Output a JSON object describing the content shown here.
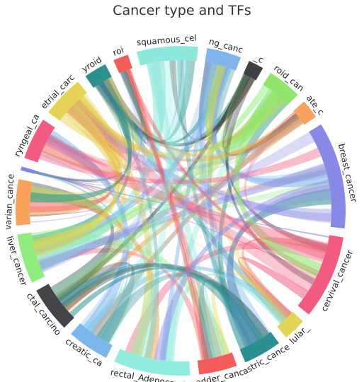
{
  "chart_data": {
    "type": "chord",
    "title": "Cancer type and TFs",
    "groups": [
      {
        "label": "squamous_cel",
        "color": "#8de8dc",
        "weight": 8.0
      },
      {
        "label": "ng_canc",
        "color": "#7fb5ec",
        "weight": 4.5
      },
      {
        "label": "_c",
        "color": "#3f4046",
        "weight": 2.0
      },
      {
        "label": "roid_can",
        "color": "#90e56e",
        "weight": 4.5
      },
      {
        "label": "ate_c",
        "color": "#f7a35d",
        "weight": 2.5
      },
      {
        "label": "breast_cancer",
        "color": "#8888e6",
        "weight": 14.0
      },
      {
        "label": "cervival_cancer",
        "color": "#f15b80",
        "weight": 11.0
      },
      {
        "label": "lular_",
        "color": "#e4d454",
        "weight": 3.0
      },
      {
        "label": "astric_cance",
        "color": "#2b908f",
        "weight": 5.0
      },
      {
        "label": "adder_canc",
        "color": "#f45b5b",
        "weight": 5.0
      },
      {
        "label": "rectal_Adenocarcin",
        "color": "#90ecde",
        "weight": 10.0
      },
      {
        "label": "creatic_ca",
        "color": "#7cb5ec",
        "weight": 5.5
      },
      {
        "label": "ctal_carcino",
        "color": "#434348",
        "weight": 6.0
      },
      {
        "label": "liver_cancer",
        "color": "#90ed7d",
        "weight": 6.5
      },
      {
        "label": "varian_cance",
        "color": "#f7a35c",
        "weight": 6.0
      },
      {
        "label": "",
        "color": "#8085e9",
        "weight": 0.5
      },
      {
        "label": "ryngeal_ca",
        "color": "#f15c80",
        "weight": 5.5
      },
      {
        "label": "etrial_carc",
        "color": "#e4d354",
        "weight": 5.5
      },
      {
        "label": "yroid",
        "color": "#2b908f",
        "weight": 3.0
      },
      {
        "label": "roi",
        "color": "#f45b5b",
        "weight": 2.0
      }
    ]
  }
}
